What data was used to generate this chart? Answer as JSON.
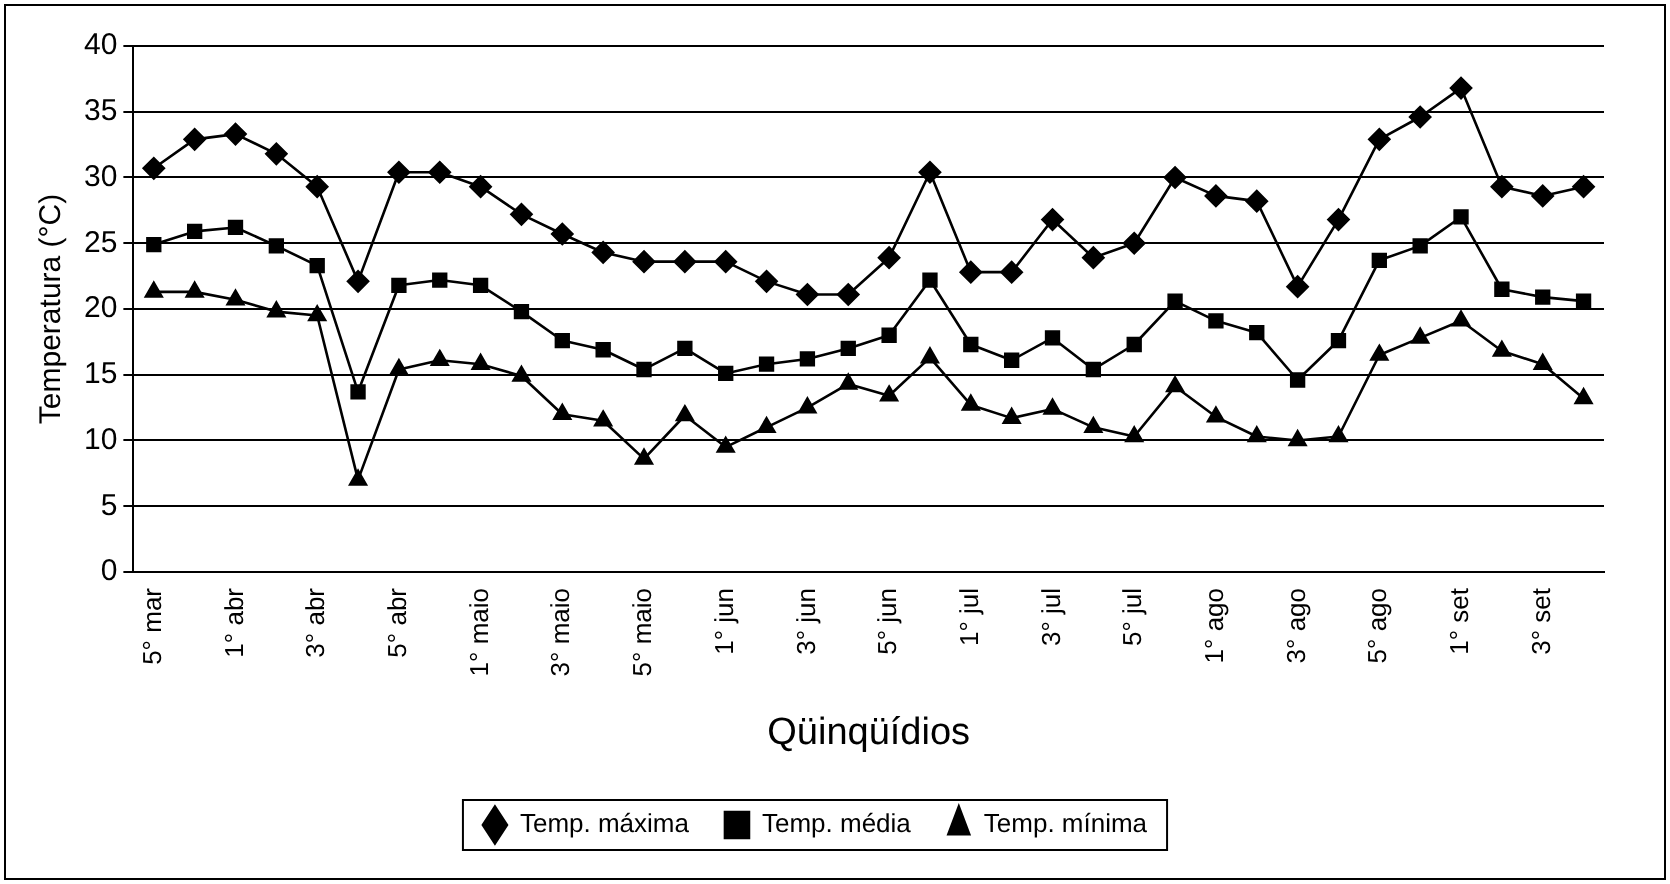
{
  "chart_data": {
    "type": "line",
    "xlabel": "Qüinqüídios",
    "ylabel": "Temperatura (°C)",
    "categories": [
      "5° mar",
      null,
      "1° abr",
      null,
      "3° abr",
      null,
      "5° abr",
      null,
      "1° maio",
      null,
      "3° maio",
      null,
      "5° maio",
      null,
      "1° jun",
      null,
      "3° jun",
      null,
      "5° jun",
      null,
      "1° jul",
      null,
      "3° jul",
      null,
      "5° jul",
      null,
      "1° ago",
      null,
      "3° ago",
      null,
      "5° ago",
      null,
      "1° set",
      null,
      "3° set",
      null
    ],
    "ylim": [
      0,
      40
    ],
    "yticks": [
      0,
      5,
      10,
      15,
      20,
      25,
      30,
      35,
      40
    ],
    "grid": "y",
    "legend": "bottom",
    "line_style": "solid",
    "series": [
      {
        "name": "Temp. máxima",
        "color": "#000000",
        "marker": "diamond",
        "values": [
          30.7,
          32.9,
          33.3,
          31.8,
          29.3,
          22.1,
          30.4,
          30.4,
          29.3,
          27.2,
          25.7,
          24.3,
          23.6,
          23.6,
          23.6,
          22.1,
          21.1,
          21.1,
          23.9,
          30.4,
          22.8,
          22.8,
          26.8,
          23.9,
          25,
          30,
          28.6,
          28.2,
          21.7,
          26.8,
          32.9,
          34.6,
          36.8,
          29.3,
          28.6,
          29.3
        ]
      },
      {
        "name": "Temp. média",
        "color": "#000000",
        "marker": "square",
        "values": [
          24.9,
          25.9,
          26.2,
          24.8,
          23.3,
          13.7,
          21.8,
          22.2,
          21.8,
          19.8,
          17.6,
          16.9,
          15.4,
          17,
          15.1,
          15.8,
          16.2,
          17,
          18,
          22.2,
          17.3,
          16.1,
          17.8,
          15.4,
          17.3,
          20.6,
          19.1,
          18.2,
          14.6,
          17.6,
          23.7,
          24.8,
          27,
          21.5,
          20.9,
          20.6
        ]
      },
      {
        "name": "Temp. mínima",
        "color": "#000000",
        "marker": "triangle",
        "values": [
          21.3,
          21.3,
          20.7,
          19.8,
          19.5,
          7,
          15.4,
          16.1,
          15.8,
          14.9,
          12,
          11.5,
          8.6,
          11.9,
          9.5,
          11,
          12.5,
          14.3,
          13.4,
          16.3,
          12.7,
          11.7,
          12.4,
          11,
          10.3,
          14.1,
          11.8,
          10.3,
          10,
          10.3,
          16.5,
          17.8,
          19.1,
          16.8,
          15.8,
          13.2
        ]
      }
    ]
  }
}
